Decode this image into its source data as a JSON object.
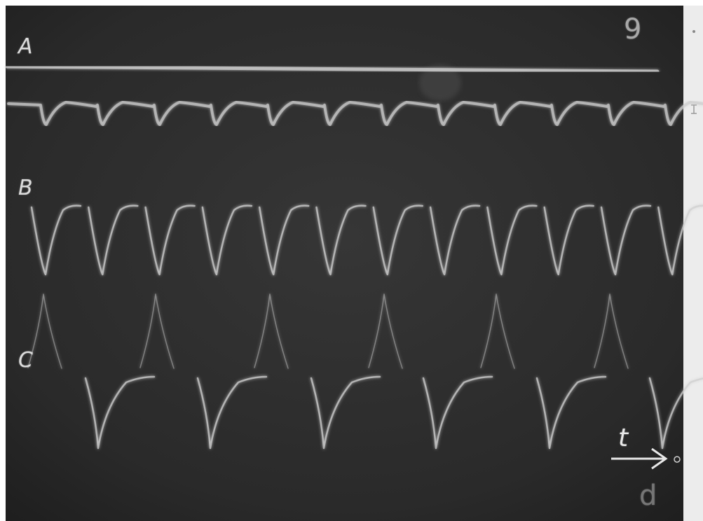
{
  "photo": {
    "subject": "oscilloscope-traces",
    "frame_number": "9",
    "trace_labels": [
      "A",
      "B",
      "C"
    ],
    "time_axis_label": "t",
    "corner_mark": "d",
    "colors": {
      "background": "#2b2b2b",
      "trace": "#cfcfcf",
      "text": "#e0e0e0",
      "border": "#ffffff"
    }
  }
}
